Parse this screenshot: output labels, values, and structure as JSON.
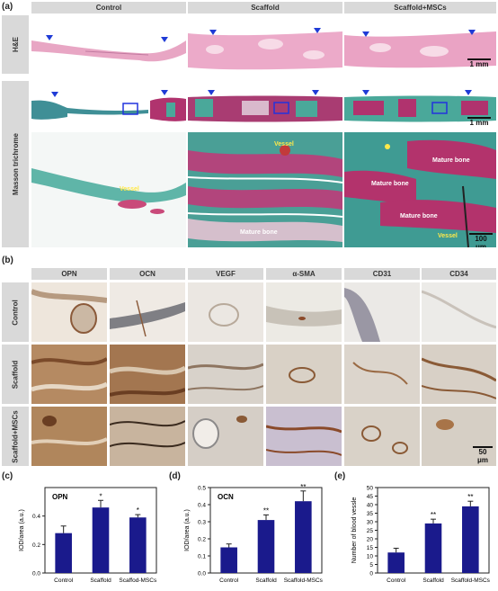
{
  "panel_a": {
    "label": "(a)",
    "columns": [
      "Control",
      "Scaffold",
      "Scaffold+MSCs"
    ],
    "rows": [
      "H&E",
      "Masson trichrome"
    ],
    "scalebar_top": "1 mm",
    "scalebar_mid": "1 mm",
    "scalebar_bottom": "100 μm",
    "annotations": {
      "control_vessel": "Vessel",
      "scaffold_vessel": "Vessel",
      "scaffold_mature": "Mature bone",
      "msc_mature1": "Mature bone",
      "msc_mature2": "Mature bone",
      "msc_mature3": "Mature bone",
      "msc_vessel": "Vessel"
    },
    "colors": {
      "he_pink": "#e9a8c6",
      "masson_teal": "#4aa89a",
      "masson_red": "#b0336e"
    }
  },
  "panel_b": {
    "label": "(b)",
    "columns": [
      "OPN",
      "OCN",
      "VEGF",
      "α-SMA",
      "CD31",
      "CD34"
    ],
    "rows": [
      "Control",
      "Scaffold",
      "Scaffold+MSCs"
    ],
    "scalebar": "50 μm"
  },
  "chart_data": [
    {
      "type": "bar",
      "panel": "(c)",
      "title": "OPN",
      "ylabel": "IOD/area (a.u.)",
      "categories": [
        "Control",
        "Scaffold",
        "Scaffod-MSCs"
      ],
      "values": [
        0.28,
        0.46,
        0.39
      ],
      "errors": [
        0.05,
        0.05,
        0.02
      ],
      "significance": [
        "",
        "*",
        "*"
      ],
      "ylim": [
        0,
        0.6
      ],
      "yticks": [
        0.0,
        0.2,
        0.4
      ],
      "ytick_labels": [
        "0.0",
        "0.2",
        "0.4"
      ],
      "color": "#1a1a8c"
    },
    {
      "type": "bar",
      "panel": "(d)",
      "title": "OCN",
      "ylabel": "IOD/area (a.u.)",
      "categories": [
        "Control",
        "Scaffold",
        "Scaffold-MSCs"
      ],
      "values": [
        0.15,
        0.31,
        0.42
      ],
      "errors": [
        0.02,
        0.03,
        0.06
      ],
      "significance": [
        "",
        "**",
        "**"
      ],
      "ylim": [
        0,
        0.5
      ],
      "yticks": [
        0.0,
        0.1,
        0.2,
        0.3,
        0.4,
        0.5
      ],
      "ytick_labels": [
        "0.0",
        "0.1",
        "0.2",
        "0.3",
        "0.4",
        "0.5"
      ],
      "color": "#1a1a8c"
    },
    {
      "type": "bar",
      "panel": "(e)",
      "title": "",
      "ylabel": "Number of blood vessle",
      "categories": [
        "Control",
        "Scaffold",
        "Scaffold-MSCs"
      ],
      "values": [
        12,
        29,
        39
      ],
      "errors": [
        2.5,
        2.5,
        3
      ],
      "significance": [
        "",
        "**",
        "**"
      ],
      "ylim": [
        0,
        50
      ],
      "yticks": [
        0,
        5,
        10,
        15,
        20,
        25,
        30,
        35,
        40,
        45,
        50
      ],
      "ytick_labels": [
        "0",
        "5",
        "10",
        "15",
        "20",
        "25",
        "30",
        "35",
        "40",
        "45",
        "50"
      ],
      "color": "#1a1a8c"
    }
  ],
  "panel_labels": {
    "c": "(c)",
    "d": "(d)",
    "e": "(e)"
  }
}
